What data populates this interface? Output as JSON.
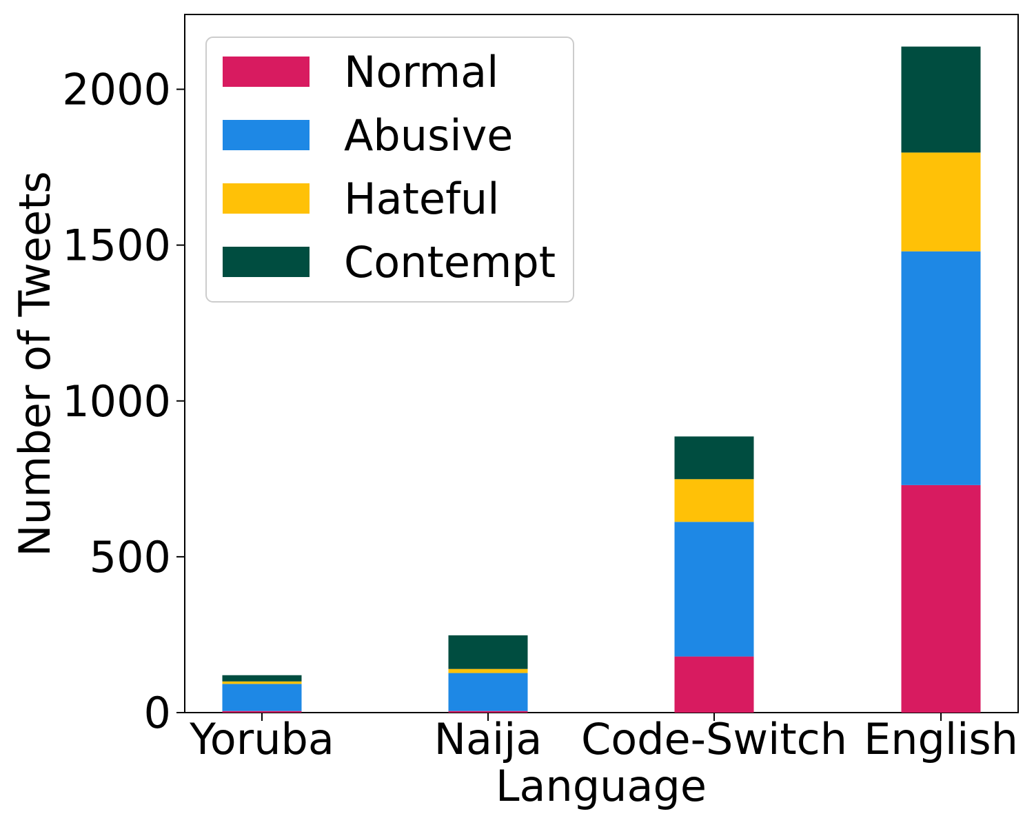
{
  "chart_data": {
    "type": "bar",
    "stacked": true,
    "categories": [
      "Yoruba",
      "Naija",
      "Code-Switch",
      "English"
    ],
    "series": [
      {
        "name": "Normal",
        "color": "#D81B60",
        "values": [
          5,
          5,
          180,
          730
        ]
      },
      {
        "name": "Abusive",
        "color": "#1E88E5",
        "values": [
          87,
          122,
          432,
          750
        ]
      },
      {
        "name": "Hateful",
        "color": "#FFC107",
        "values": [
          8,
          13,
          137,
          317
        ]
      },
      {
        "name": "Contempt",
        "color": "#004D40",
        "values": [
          20,
          108,
          137,
          340
        ]
      }
    ],
    "xlabel": "Language",
    "ylabel": "Number of Tweets",
    "ylim": [
      0,
      2240
    ],
    "yticks": [
      0,
      500,
      1000,
      1500,
      2000
    ],
    "legend": "top-left",
    "grid": false
  }
}
